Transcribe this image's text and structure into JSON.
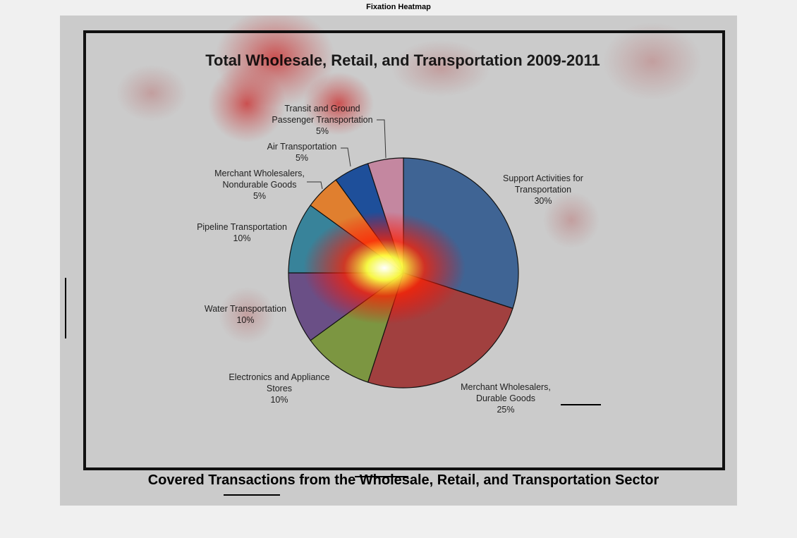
{
  "window": {
    "title": "Fixation Heatmap"
  },
  "chart_data": {
    "type": "pie",
    "title": "Total Wholesale, Retail, and Transportation 2009-2011",
    "caption": "Covered Transactions from the Wholesale, Retail, and Transportation Sector",
    "unit": "%",
    "slices": [
      {
        "label_lines": [
          "Support Activities for",
          "Transportation",
          "30%"
        ],
        "value": 30,
        "color": "#3f6494"
      },
      {
        "label_lines": [
          "Merchant Wholesalers,",
          "Durable Goods",
          "25%"
        ],
        "value": 25,
        "color": "#a1403f"
      },
      {
        "label_lines": [
          "Electronics and Appliance",
          "Stores",
          "10%"
        ],
        "value": 10,
        "color": "#7c9641"
      },
      {
        "label_lines": [
          "Water Transportation",
          "10%"
        ],
        "value": 10,
        "color": "#6a4f86"
      },
      {
        "label_lines": [
          "Pipeline Transportation",
          "10%"
        ],
        "value": 10,
        "color": "#38839a"
      },
      {
        "label_lines": [
          "Merchant Wholesalers,",
          "Nondurable Goods",
          "5%"
        ],
        "value": 5,
        "color": "#e07f2f"
      },
      {
        "label_lines": [
          "Air Transportation",
          "5%"
        ],
        "value": 5,
        "color": "#1e4f9a"
      },
      {
        "label_lines": [
          "Transit and Ground",
          "Passenger Transportation",
          "5%"
        ],
        "value": 5,
        "color": "#c487a0"
      }
    ],
    "heatmap_overlay": {
      "colormap": [
        "#ffffff",
        "#ffff00",
        "#ff0000",
        "transparent"
      ]
    }
  }
}
